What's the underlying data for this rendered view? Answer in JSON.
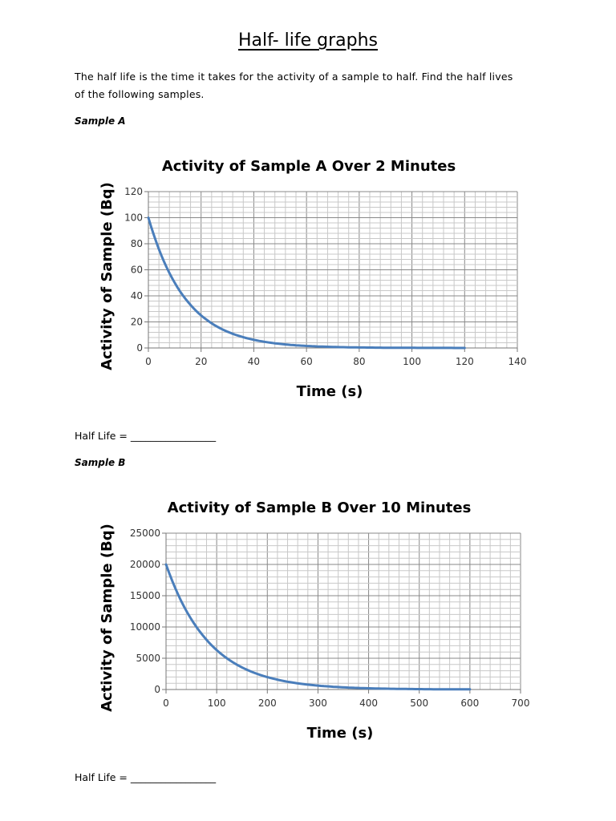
{
  "title": "Half- life graphs",
  "intro_line1": "The half life is the time it takes for the activity of a sample to half. Find the half lives",
  "intro_line2": "of the following samples.",
  "samples": [
    {
      "label": "Sample A",
      "half_life_label": "Half Life = _________________"
    },
    {
      "label": "Sample B",
      "half_life_label": "Half Life = _________________"
    }
  ],
  "colors": {
    "line": "#4a7ebb",
    "major_grid": "#888888",
    "minor_grid": "#c8c8c8"
  },
  "chart_data": [
    {
      "type": "line",
      "title": "Activity of Sample A Over 2 Minutes",
      "xlabel": "Time (s)",
      "ylabel": "Activity of Sample (Bq)",
      "xlim": [
        0,
        140
      ],
      "ylim": [
        0,
        120
      ],
      "xticks": [
        "0",
        "20",
        "40",
        "60",
        "80",
        "100",
        "120",
        "140"
      ],
      "yticks": [
        "0",
        "20",
        "40",
        "60",
        "80",
        "100",
        "120"
      ],
      "xstep": 20,
      "ystep": 20,
      "xminor": 4,
      "yminor": 4,
      "grid": true,
      "series": [
        {
          "name": "Sample A",
          "x": [
            0,
            10,
            20,
            30,
            40,
            50,
            60,
            70,
            80,
            90,
            100,
            110,
            120
          ],
          "y": [
            100,
            50,
            25,
            12.5,
            6.25,
            3.13,
            1.56,
            0.78,
            0.39,
            0.2,
            0.1,
            0.05,
            0.02
          ]
        }
      ]
    },
    {
      "type": "line",
      "title": "Activity of Sample B Over 10 Minutes",
      "xlabel": "Time (s)",
      "ylabel": "Activity of Sample (Bq)",
      "xlim": [
        0,
        700
      ],
      "ylim": [
        0,
        25000
      ],
      "xticks": [
        "0",
        "100",
        "200",
        "300",
        "400",
        "500",
        "600",
        "700"
      ],
      "yticks": [
        "0",
        "5000",
        "10000",
        "15000",
        "20000",
        "25000"
      ],
      "xstep": 100,
      "ystep": 5000,
      "xminor": 20,
      "yminor": 1000,
      "grid": true,
      "series": [
        {
          "name": "Sample B",
          "x": [
            0,
            60,
            120,
            180,
            240,
            300,
            360,
            420,
            480,
            540,
            600
          ],
          "y": [
            20000,
            10000,
            5000,
            2500,
            1250,
            625,
            312.5,
            156,
            78,
            39,
            20
          ]
        }
      ]
    }
  ]
}
